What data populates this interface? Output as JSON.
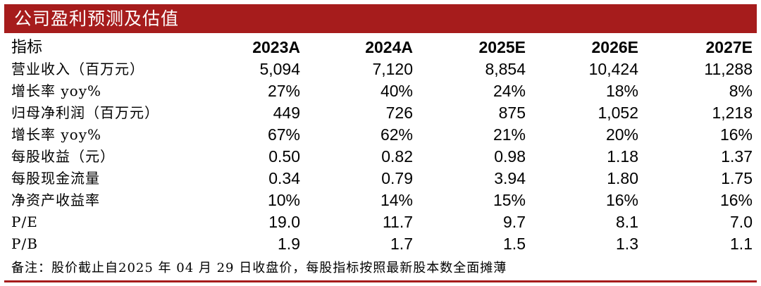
{
  "title": "公司盈利预测及估值",
  "table": {
    "headers": [
      "指标",
      "2023A",
      "2024A",
      "2025E",
      "2026E",
      "2027E"
    ],
    "rows": [
      {
        "label": "营业收入（百万元）",
        "values": [
          "5,094",
          "7,120",
          "8,854",
          "10,424",
          "11,288"
        ]
      },
      {
        "label": "增长率 yoy%",
        "values": [
          "27%",
          "40%",
          "24%",
          "18%",
          "8%"
        ]
      },
      {
        "label": "归母净利润（百万元）",
        "values": [
          "449",
          "726",
          "875",
          "1,052",
          "1,218"
        ]
      },
      {
        "label": "增长率 yoy%",
        "values": [
          "67%",
          "62%",
          "21%",
          "20%",
          "16%"
        ]
      },
      {
        "label": "每股收益（元）",
        "values": [
          "0.50",
          "0.82",
          "0.98",
          "1.18",
          "1.37"
        ]
      },
      {
        "label": "每股现金流量",
        "values": [
          "0.34",
          "0.79",
          "3.94",
          "1.80",
          "1.75"
        ]
      },
      {
        "label": "净资产收益率",
        "values": [
          "10%",
          "14%",
          "15%",
          "16%",
          "16%"
        ]
      },
      {
        "label": "P/E",
        "values": [
          "19.0",
          "11.7",
          "9.7",
          "8.1",
          "7.0"
        ]
      },
      {
        "label": "P/B",
        "values": [
          "1.9",
          "1.7",
          "1.5",
          "1.3",
          "1.1"
        ]
      }
    ]
  },
  "note": "备注：股价截止自2025 年 04 月 29 日收盘价，每股指标按照最新股本数全面摊薄",
  "colors": {
    "accent": "#a61c1c"
  }
}
